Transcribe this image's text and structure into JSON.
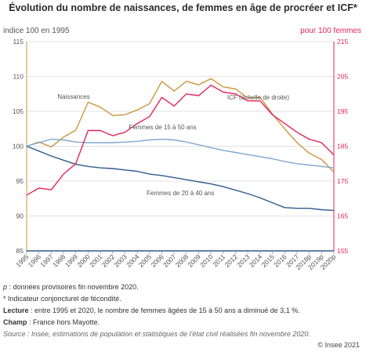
{
  "header": {
    "title": "Évolution du nombre de naissances, de femmes en âge de procréer et ICF*",
    "left_axis_unit": "indice 100 en 1995",
    "right_axis_unit": "pour 100 femmes"
  },
  "notes": {
    "p_note_symbol": "p",
    "p_note_text": " : données provisoires fin novembre 2020.",
    "icf_note": "* Indicateur conjoncturel de fécondité.",
    "lecture_label": "Lecture",
    "lecture_text": " : entre 1995 et 2020, le nombre de femmes âgées de 15 à 50 ans a diminué de 3,1 %.",
    "champ_label": "Champ",
    "champ_text": " : France hors Mayotte.",
    "source": "Source : Insee, estimations de population et statistiques de l'état civil réalisées fin novembre 2020.",
    "copyright": "© Insee 2021"
  },
  "chart_data": {
    "type": "line",
    "categories": [
      "1995",
      "1996",
      "1997",
      "1998",
      "1999",
      "2000",
      "2001",
      "2002",
      "2003",
      "2004",
      "2005",
      "2006",
      "2007",
      "2008",
      "2009",
      "2010",
      "2011",
      "2012",
      "2013",
      "2014",
      "2015",
      "2016",
      "2017",
      "2018p",
      "2019p",
      "2020p"
    ],
    "ylim_left": [
      85,
      115
    ],
    "yticks_left": [
      85,
      90,
      95,
      100,
      105,
      110,
      115
    ],
    "ylim_right": [
      155,
      215
    ],
    "yticks_right": [
      155,
      165,
      175,
      185,
      195,
      205,
      215
    ],
    "grid": "horizontal",
    "series": [
      {
        "name": "Naissances",
        "axis": "left",
        "color": "#c9973f",
        "values": [
          100.0,
          100.6,
          99.9,
          101.3,
          102.3,
          106.3,
          105.6,
          104.4,
          104.5,
          105.2,
          106.1,
          109.3,
          107.9,
          109.3,
          108.8,
          109.7,
          108.5,
          108.2,
          106.9,
          107.0,
          104.6,
          102.5,
          100.5,
          99.0,
          98.1,
          96.3
        ]
      },
      {
        "name": "Femmes de 15 à 50 ans",
        "axis": "left",
        "color": "#7fa7d0",
        "values": [
          100.0,
          100.5,
          101.0,
          100.9,
          100.6,
          100.5,
          100.5,
          100.5,
          100.6,
          100.7,
          100.9,
          101.0,
          100.9,
          100.6,
          100.2,
          99.8,
          99.4,
          99.1,
          98.8,
          98.5,
          98.2,
          97.8,
          97.5,
          97.3,
          97.1,
          96.9
        ]
      },
      {
        "name": "Femmes de 20 à 40 ans",
        "axis": "left",
        "color": "#2e5b8f",
        "values": [
          100.0,
          99.3,
          98.6,
          98.0,
          97.4,
          97.1,
          96.9,
          96.8,
          96.6,
          96.4,
          96.0,
          95.8,
          95.5,
          95.2,
          94.9,
          94.6,
          94.2,
          93.7,
          93.2,
          92.6,
          91.9,
          91.2,
          91.1,
          91.1,
          90.9,
          90.8
        ]
      },
      {
        "name": "ICF (échelle de droite)",
        "axis": "right",
        "color": "#e4235a",
        "values": [
          171.0,
          173.0,
          172.5,
          177.0,
          180.0,
          189.5,
          189.5,
          188.0,
          189.0,
          191.5,
          193.5,
          199.0,
          196.5,
          200.0,
          199.5,
          202.5,
          200.5,
          200.0,
          198.0,
          198.0,
          194.0,
          191.5,
          189.0,
          187.0,
          186.0,
          182.5
        ]
      }
    ]
  }
}
